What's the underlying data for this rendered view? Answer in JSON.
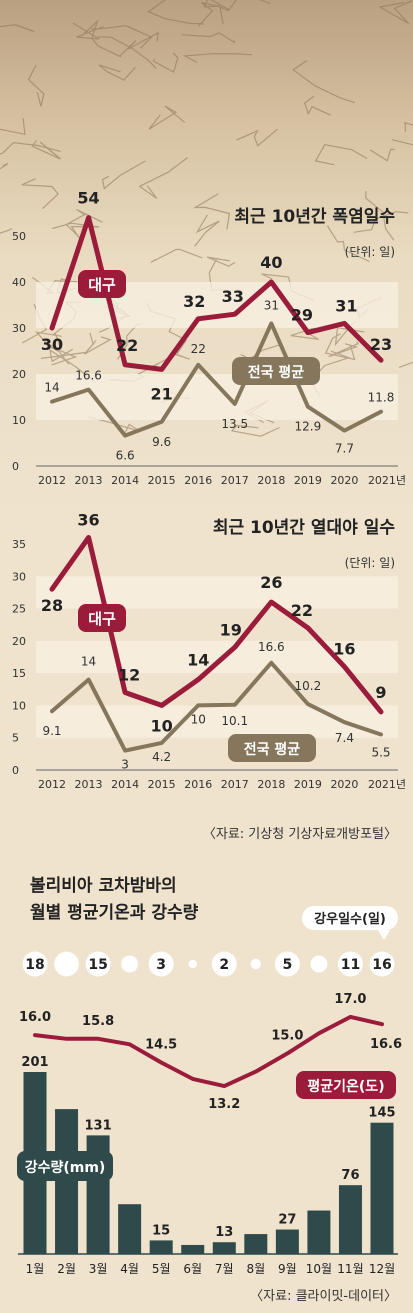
{
  "chart_data": [
    {
      "type": "line",
      "title": "최근 10년간 폭염일수",
      "unit_note": "(단위: 일)",
      "ylim": [
        0,
        50
      ],
      "yticks": [
        "0",
        "10",
        "20",
        "30",
        "40",
        "50"
      ],
      "categories": [
        "2012",
        "2013",
        "2014",
        "2015",
        "2016",
        "2017",
        "2018",
        "2019",
        "2020",
        "2021년"
      ],
      "series": [
        {
          "name": "대구",
          "values": [
            30,
            54,
            22,
            21,
            32,
            33,
            40,
            29,
            31,
            23
          ],
          "color": "#9b1b3a"
        },
        {
          "name": "전국 평균",
          "values": [
            14,
            16.6,
            6.6,
            9.6,
            22,
            13.5,
            31,
            12.9,
            7.7,
            11.8
          ],
          "color": "#85765c"
        }
      ],
      "labels_major": [
        "30",
        "54",
        "22",
        "21",
        "32",
        "33",
        "40",
        "29",
        "31",
        "23"
      ],
      "labels_minor": [
        "14",
        "16.6",
        "6.6",
        "9.6",
        "22",
        "13.5",
        "31",
        "12.9",
        "7.7",
        "11.8"
      ]
    },
    {
      "type": "line",
      "title": "최근 10년간 열대야 일수",
      "unit_note": "(단위: 일)",
      "ylim": [
        0,
        35
      ],
      "yticks": [
        "0",
        "5",
        "10",
        "15",
        "20",
        "25",
        "30",
        "35"
      ],
      "categories": [
        "2012",
        "2013",
        "2014",
        "2015",
        "2016",
        "2017",
        "2018",
        "2019",
        "2020",
        "2021년"
      ],
      "series": [
        {
          "name": "대구",
          "values": [
            28,
            36,
            12,
            10,
            14,
            19,
            26,
            22,
            16,
            9
          ],
          "color": "#9b1b3a"
        },
        {
          "name": "전국 평균",
          "values": [
            9.1,
            14,
            3,
            4.2,
            10,
            10.1,
            16.6,
            10.2,
            7.4,
            5.5
          ],
          "color": "#85765c"
        }
      ],
      "labels_major": [
        "28",
        "36",
        "12",
        "10",
        "14",
        "19",
        "26",
        "22",
        "16",
        "9"
      ],
      "labels_minor": [
        "9.1",
        "14",
        "3",
        "4.2",
        "10",
        "10.1",
        "16.6",
        "10.2",
        "7.4",
        "5.5"
      ],
      "source": "〈자료: 기상청 기상자료개방포털〉"
    },
    {
      "type": "bar",
      "title": [
        "볼리비아 코차밤바의",
        "월별 평균기온과 강수량"
      ],
      "categories": [
        "1월",
        "2월",
        "3월",
        "4월",
        "5월",
        "6월",
        "7월",
        "8월",
        "9월",
        "10월",
        "11월",
        "12월"
      ],
      "precip_label": "강수량(mm)",
      "precip_values": [
        201,
        160,
        131,
        55,
        15,
        10,
        13,
        22,
        27,
        48,
        76,
        145
      ],
      "precip_shown": [
        "201",
        "",
        "131",
        "",
        "15",
        "",
        "13",
        "",
        "27",
        "",
        "76",
        "145"
      ],
      "temp_label": "평균기온(도)",
      "temp_values": [
        16.0,
        15.8,
        15.8,
        15.5,
        14.5,
        13.6,
        13.2,
        14.0,
        15.0,
        16.1,
        17.0,
        16.6
      ],
      "temp_shown": [
        "16.0",
        "",
        "15.8",
        "",
        "14.5",
        "",
        "13.2",
        "",
        "15.0",
        "",
        "17.0",
        "16.6"
      ],
      "rain_days_label": "강우일수(일)",
      "rain_days": [
        18,
        17,
        15,
        8,
        3,
        2,
        2,
        3,
        5,
        8,
        11,
        16
      ],
      "rain_days_shown": [
        "18",
        "",
        "15",
        "",
        "3",
        "",
        "2",
        "",
        "5",
        "",
        "11",
        "16"
      ],
      "source": "〈자료: 클라이밋-데이터〉",
      "colors": {
        "bar": "#2f4a4a",
        "temp": "#9b1b3a",
        "drop": "#ffffff"
      }
    }
  ]
}
